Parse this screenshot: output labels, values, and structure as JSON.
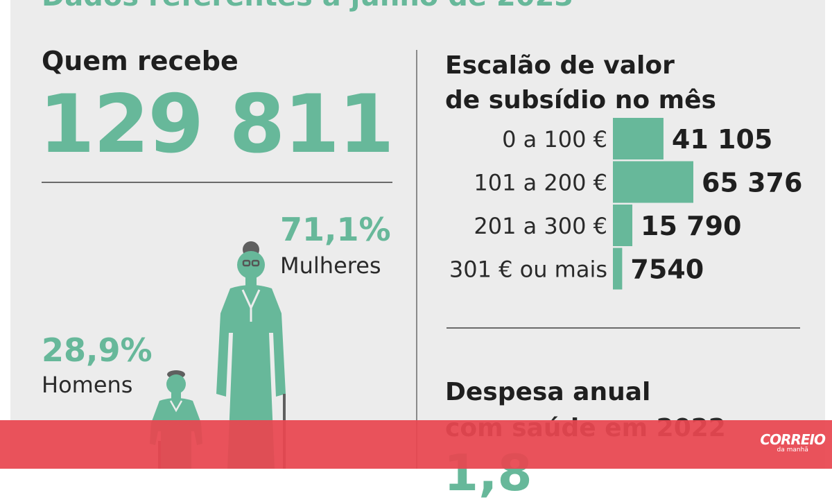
{
  "header": {
    "title": "Dados referentes a junho de 2023"
  },
  "recipients": {
    "title": "Quem recebe",
    "total": "129 811",
    "women_pct": "71,1%",
    "women_label": "Mulheres",
    "men_pct": "28,9%",
    "men_label": "Homens"
  },
  "chart_data": {
    "type": "bar",
    "orientation": "horizontal",
    "title": "Escalão de valor de subsídio no mês",
    "title_lines": [
      "Escalão de valor",
      "de subsídio no mês"
    ],
    "categories": [
      "0 a 100 €",
      "101 a 200 €",
      "201 a 300 €",
      "301 € ou mais"
    ],
    "values": [
      41105,
      65376,
      15790,
      7540
    ],
    "value_labels": [
      "41 105",
      "65 376",
      "15 790",
      "7540"
    ],
    "xlim": [
      0,
      65376
    ],
    "grid": false,
    "color": "#67b89a"
  },
  "expense": {
    "line1": "Despesa anual",
    "line2": "com saúde em 2022",
    "number_partial": "1,8"
  },
  "logo": {
    "main": "CORREIO",
    "sub": "da manhã"
  },
  "colors": {
    "accent": "#67b89a",
    "banner": "#e84650",
    "panel": "#ececec"
  }
}
